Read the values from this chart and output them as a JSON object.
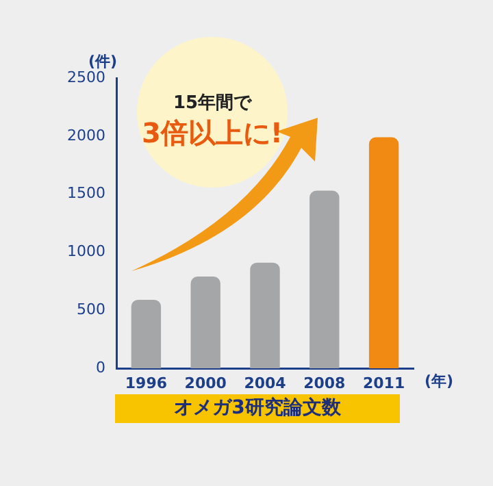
{
  "chart_data": {
    "type": "bar",
    "title": "オメガ3研究論文数",
    "xlabel": "(年)",
    "ylabel": "(件)",
    "categories": [
      "1996",
      "2000",
      "2004",
      "2008",
      "2011"
    ],
    "values": [
      590,
      790,
      910,
      1530,
      1990
    ],
    "colors": [
      "#a4a6a8",
      "#a4a6a8",
      "#a4a6a8",
      "#a4a6a8",
      "#f08a12"
    ],
    "ylim": [
      0,
      2500
    ],
    "yticks": [
      0,
      500,
      1000,
      1500,
      2000,
      2500
    ],
    "grid": false,
    "legend": false,
    "annotations": [
      "15年間で",
      "3倍以上に!"
    ]
  }
}
